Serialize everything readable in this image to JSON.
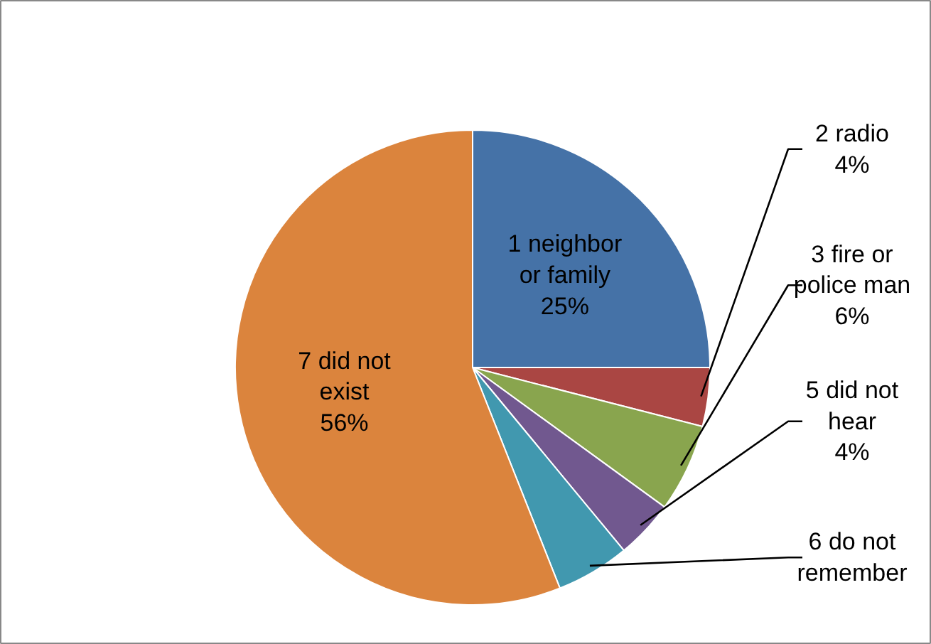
{
  "chart_data": {
    "type": "pie",
    "categories": [
      "1 neighbor or family",
      "2 radio",
      "3 fire or police man",
      "5 did not hear",
      "6 do not remember",
      "7 did not exist"
    ],
    "values": [
      25,
      4,
      6,
      4,
      5,
      56
    ],
    "value_labels": [
      "25%",
      "4%",
      "6%",
      "4%",
      null,
      "56%"
    ],
    "colors": [
      "#4572a7",
      "#aa4643",
      "#89a54e",
      "#71588f",
      "#4198af",
      "#db843d"
    ]
  }
}
